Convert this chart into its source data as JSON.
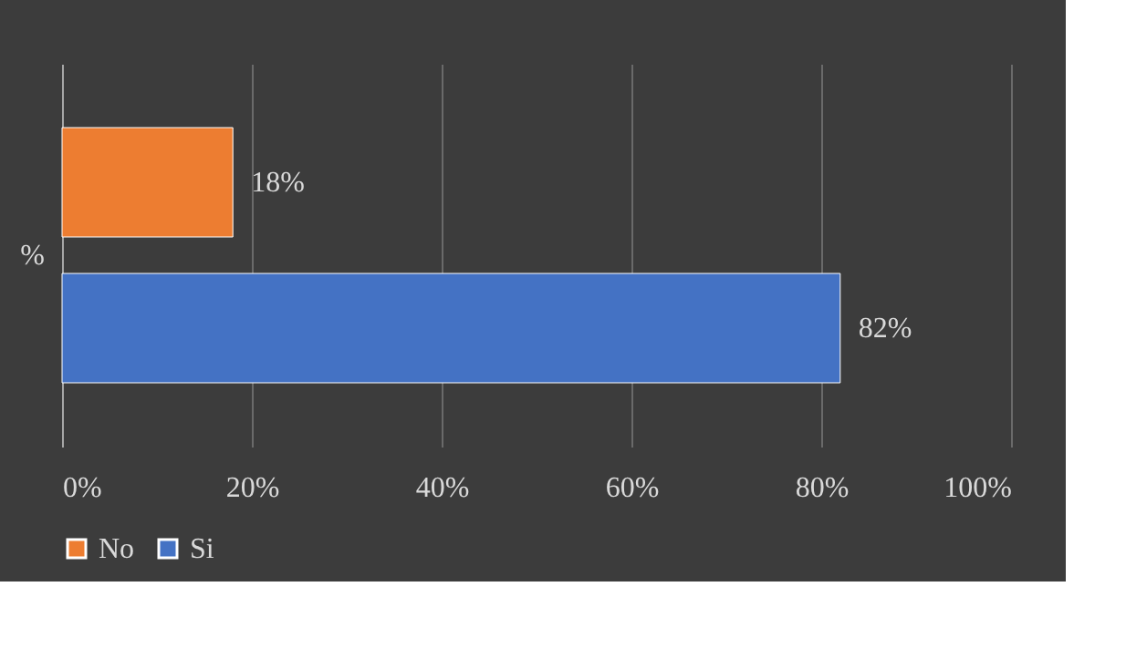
{
  "chart_data": {
    "type": "bar",
    "orientation": "horizontal",
    "categories": [
      "%"
    ],
    "series": [
      {
        "name": "No",
        "color": "#ed7d31",
        "values": [
          18
        ],
        "value_labels": [
          "18%"
        ]
      },
      {
        "name": "Si",
        "color": "#4472c4",
        "values": [
          82
        ],
        "value_labels": [
          "82%"
        ]
      }
    ],
    "xlim": [
      0,
      100
    ],
    "xticks": [
      {
        "value": 0,
        "label": "0%"
      },
      {
        "value": 20,
        "label": "20%"
      },
      {
        "value": 40,
        "label": "40%"
      },
      {
        "value": 60,
        "label": "60%"
      },
      {
        "value": 80,
        "label": "80%"
      },
      {
        "value": 100,
        "label": "100%"
      }
    ],
    "grid": "x",
    "legend": "bottom"
  }
}
